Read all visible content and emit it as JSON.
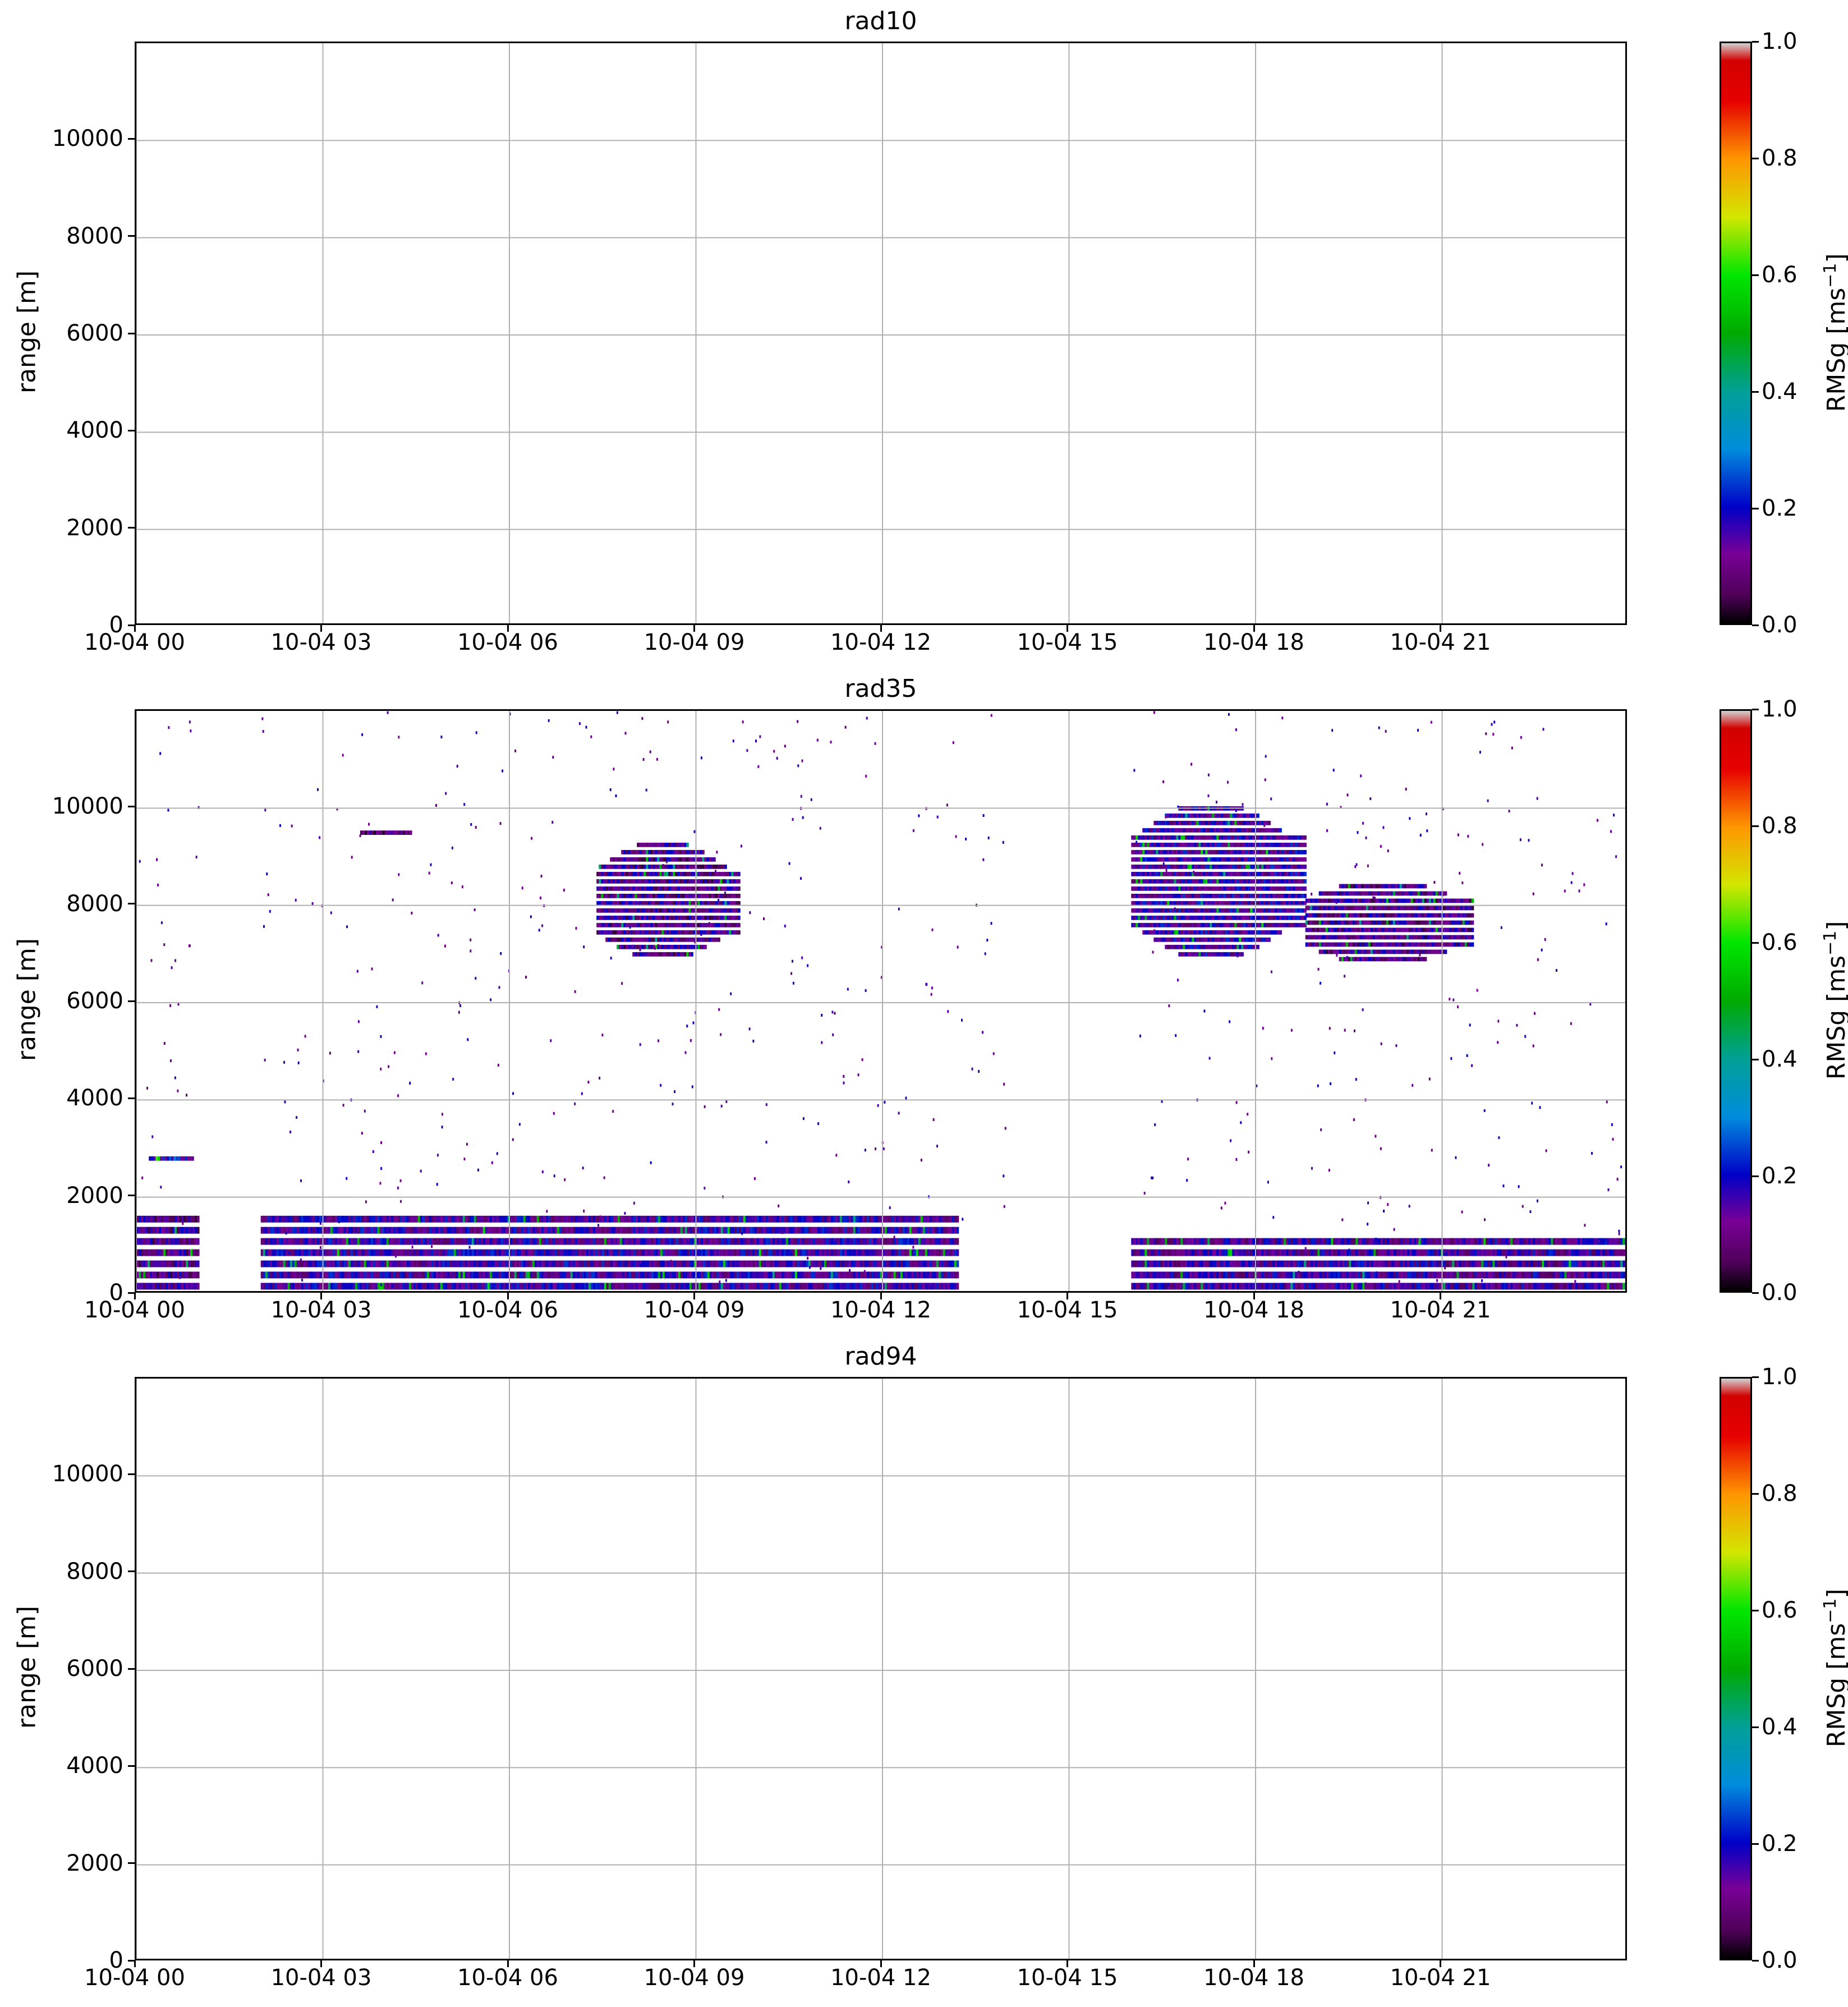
{
  "chart_data": [
    {
      "type": "heatmap",
      "title": "rad10",
      "ylabel": "range [m]",
      "colorbar_label": "RMSg [ms",
      "colorbar_unit_exp": "−1",
      "colorbar_label_end": "]",
      "ylim": [
        0,
        12000
      ],
      "yticks": [
        "0",
        "2000",
        "4000",
        "6000",
        "8000",
        "10000"
      ],
      "xlim_hours": [
        0,
        24
      ],
      "xticks": [
        "10-04 00",
        "10-04 03",
        "10-04 06",
        "10-04 09",
        "10-04 12",
        "10-04 15",
        "10-04 18",
        "10-04 21"
      ],
      "colorbar_ticks": [
        "0.0",
        "0.2",
        "0.4",
        "0.6",
        "0.8",
        "1.0"
      ],
      "grid": true,
      "has_data": false
    },
    {
      "type": "heatmap",
      "title": "rad35",
      "ylabel": "range [m]",
      "colorbar_label": "RMSg [ms",
      "colorbar_unit_exp": "−1",
      "colorbar_label_end": "]",
      "ylim": [
        0,
        12000
      ],
      "yticks": [
        "0",
        "2000",
        "4000",
        "6000",
        "8000",
        "10000"
      ],
      "xlim_hours": [
        0,
        24
      ],
      "xticks": [
        "10-04 00",
        "10-04 03",
        "10-04 06",
        "10-04 09",
        "10-04 12",
        "10-04 15",
        "10-04 18",
        "10-04 21"
      ],
      "colorbar_ticks": [
        "0.0",
        "0.2",
        "0.4",
        "0.6",
        "0.8",
        "1.0"
      ],
      "grid": true,
      "has_data": true,
      "regions": [
        {
          "kind": "boundary_layer",
          "t0": 0.0,
          "t1": 1.0,
          "z0": 100,
          "z1": 1500,
          "rms": 0.12
        },
        {
          "kind": "boundary_layer",
          "t0": 2.0,
          "t1": 13.2,
          "z0": 100,
          "z1": 1500,
          "rms": 0.15
        },
        {
          "kind": "boundary_layer",
          "t0": 16.0,
          "t1": 24.0,
          "z0": 100,
          "z1": 1200,
          "rms": 0.14
        },
        {
          "kind": "cloud",
          "t0": 7.4,
          "t1": 9.7,
          "z0": 6800,
          "z1": 9300,
          "rms": 0.12
        },
        {
          "kind": "cloud",
          "t0": 16.0,
          "t1": 18.8,
          "z0": 6800,
          "z1": 10100,
          "rms": 0.15
        },
        {
          "kind": "cloud",
          "t0": 18.8,
          "t1": 21.5,
          "z0": 6700,
          "z1": 8500,
          "rms": 0.12
        },
        {
          "kind": "cloud",
          "t0": 3.6,
          "t1": 4.4,
          "z0": 9300,
          "z1": 9600,
          "rms": 0.08
        },
        {
          "kind": "cloud",
          "t0": 0.2,
          "t1": 0.9,
          "z0": 2600,
          "z1": 2900,
          "rms": 0.2
        }
      ]
    },
    {
      "type": "heatmap",
      "title": "rad94",
      "ylabel": "range [m]",
      "colorbar_label": "RMSg [ms",
      "colorbar_unit_exp": "−1",
      "colorbar_label_end": "]",
      "ylim": [
        0,
        12000
      ],
      "yticks": [
        "0",
        "2000",
        "4000",
        "6000",
        "8000",
        "10000"
      ],
      "xlim_hours": [
        0,
        24
      ],
      "xticks": [
        "10-04 00",
        "10-04 03",
        "10-04 06",
        "10-04 09",
        "10-04 12",
        "10-04 15",
        "10-04 18",
        "10-04 21"
      ],
      "colorbar_ticks": [
        "0.0",
        "0.2",
        "0.4",
        "0.6",
        "0.8",
        "1.0"
      ],
      "grid": true,
      "has_data": false
    }
  ]
}
